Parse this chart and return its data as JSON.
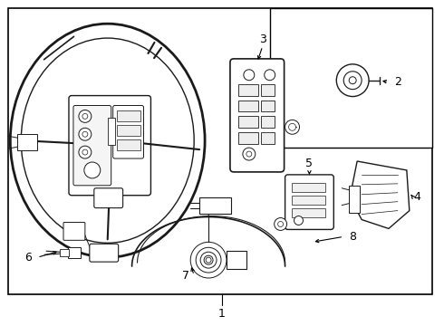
{
  "background_color": "#ffffff",
  "border_color": "#000000",
  "line_color": "#1a1a1a",
  "text_color": "#000000",
  "fig_width": 4.9,
  "fig_height": 3.6,
  "dpi": 100,
  "font_size": 9
}
